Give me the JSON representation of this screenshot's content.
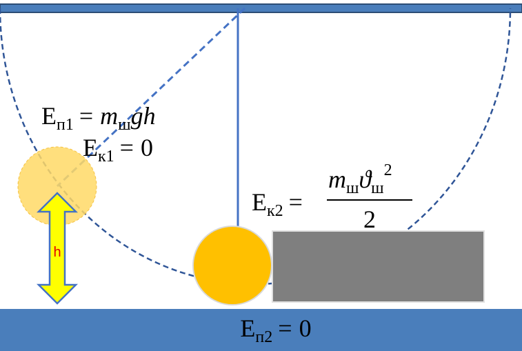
{
  "formulas": {
    "potential_top": {
      "lhs": "E",
      "lhs_sub": "п1",
      "op": "=",
      "m": "m",
      "m_sub": "ш",
      "tail": "gh"
    },
    "kinetic_top": {
      "lhs": "E",
      "lhs_sub": "к1",
      "op": "=",
      "value": "0"
    },
    "kinetic_bottom": {
      "lhs": "E",
      "lhs_sub": "к2",
      "op": "=",
      "m": "m",
      "m_sub": "ш",
      "v": "ϑ",
      "v_sub": "ш",
      "power": "2",
      "denominator": "2"
    },
    "potential_bottom": {
      "lhs": "E",
      "lhs_sub": "п2",
      "op": "=",
      "value": "0"
    }
  },
  "height_label": "h"
}
